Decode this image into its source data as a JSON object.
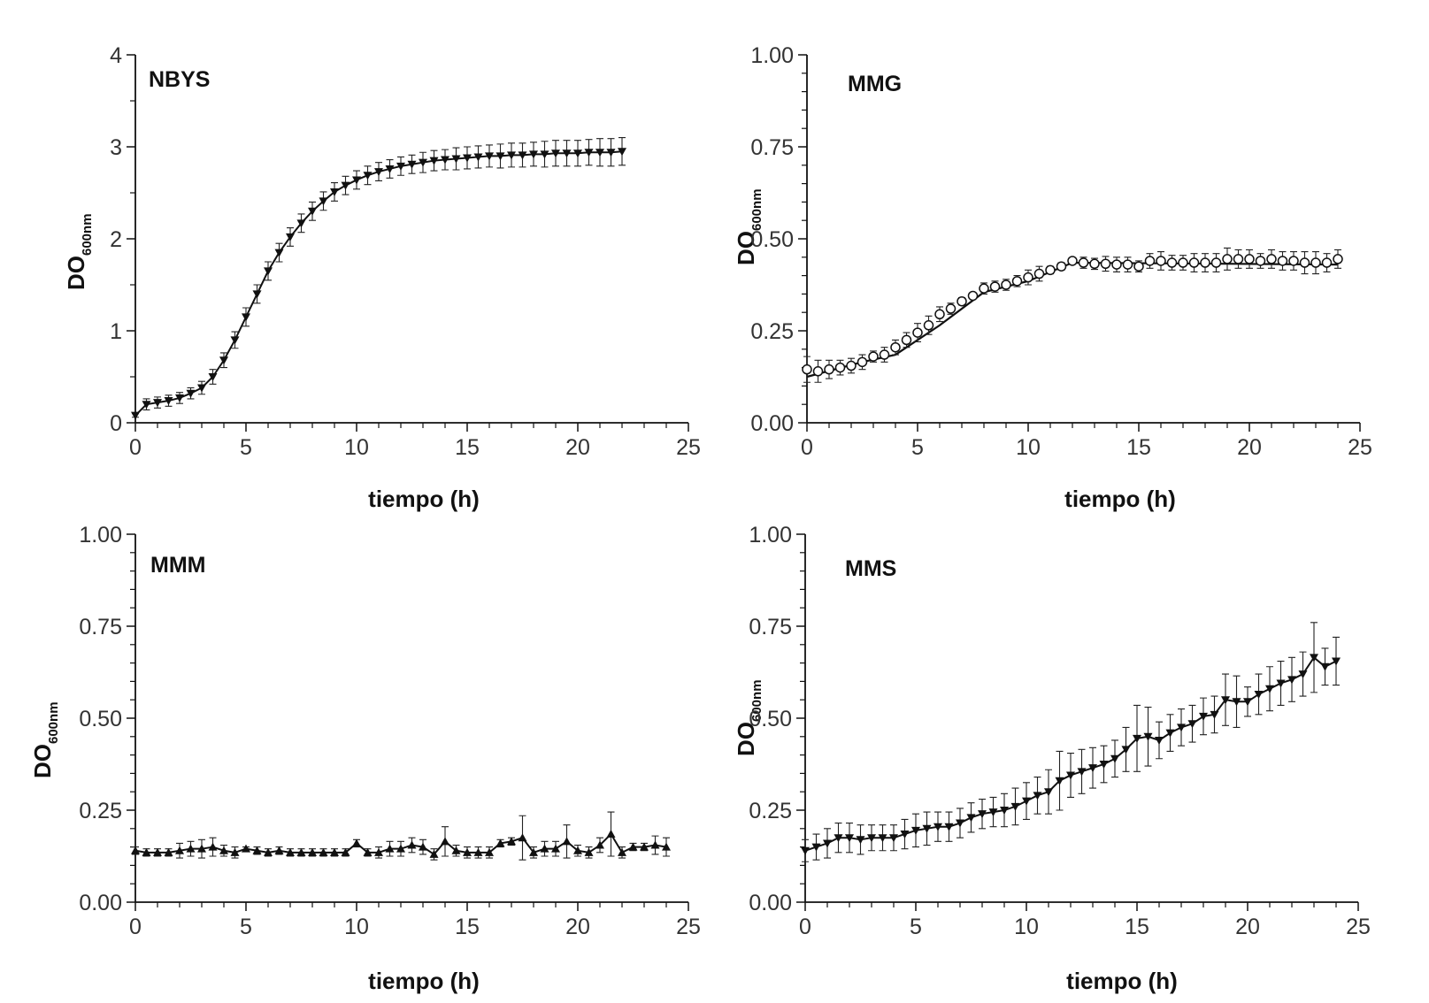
{
  "chart_data": [
    {
      "type": "line",
      "title": "NBYS",
      "xlabel": "tiempo (h)",
      "ylabel_main": "DO",
      "ylabel_sub": "600nm",
      "xlim": [
        0,
        25
      ],
      "ylim": [
        0,
        4
      ],
      "xticks": [
        "0",
        "5",
        "10",
        "15",
        "20",
        "25"
      ],
      "yticks": [
        "0",
        "1",
        "2",
        "3",
        "4"
      ],
      "marker": "triangle-down",
      "series": [
        {
          "name": "NBYS",
          "x": [
            0,
            0.5,
            1,
            1.5,
            2,
            2.5,
            3,
            3.5,
            4,
            4.5,
            5,
            5.5,
            6,
            6.5,
            7,
            7.5,
            8,
            8.5,
            9,
            9.5,
            10,
            10.5,
            11,
            11.5,
            12,
            12.5,
            13,
            13.5,
            14,
            14.5,
            15,
            15.5,
            16,
            16.5,
            17,
            17.5,
            18,
            18.5,
            19,
            19.5,
            20,
            20.5,
            21,
            21.5,
            22
          ],
          "y": [
            0.08,
            0.2,
            0.22,
            0.24,
            0.27,
            0.32,
            0.38,
            0.5,
            0.68,
            0.9,
            1.15,
            1.4,
            1.65,
            1.85,
            2.02,
            2.17,
            2.3,
            2.41,
            2.51,
            2.58,
            2.64,
            2.69,
            2.73,
            2.76,
            2.79,
            2.81,
            2.83,
            2.85,
            2.86,
            2.87,
            2.88,
            2.89,
            2.9,
            2.9,
            2.91,
            2.91,
            2.92,
            2.92,
            2.93,
            2.93,
            2.93,
            2.94,
            2.94,
            2.94,
            2.95
          ],
          "err": [
            0.02,
            0.06,
            0.06,
            0.06,
            0.06,
            0.06,
            0.07,
            0.08,
            0.08,
            0.09,
            0.1,
            0.1,
            0.1,
            0.1,
            0.1,
            0.1,
            0.1,
            0.1,
            0.1,
            0.1,
            0.1,
            0.1,
            0.1,
            0.1,
            0.1,
            0.1,
            0.11,
            0.11,
            0.11,
            0.12,
            0.12,
            0.12,
            0.12,
            0.13,
            0.13,
            0.13,
            0.13,
            0.14,
            0.14,
            0.14,
            0.14,
            0.14,
            0.15,
            0.15,
            0.15
          ]
        }
      ]
    },
    {
      "type": "line",
      "title": "MMG",
      "xlabel": "tiempo (h)",
      "ylabel_main": "DO",
      "ylabel_sub": "600nm",
      "xlim": [
        0,
        25
      ],
      "ylim": [
        0,
        1
      ],
      "xticks": [
        "0",
        "5",
        "10",
        "15",
        "20",
        "25"
      ],
      "yticks": [
        "0.00",
        "0.25",
        "0.50",
        "0.75",
        "1.00"
      ],
      "marker": "circle-open",
      "series": [
        {
          "name": "MMG",
          "x": [
            0,
            0.5,
            1,
            1.5,
            2,
            2.5,
            3,
            3.5,
            4,
            4.5,
            5,
            5.5,
            6,
            6.5,
            7,
            7.5,
            8,
            8.5,
            9,
            9.5,
            10,
            10.5,
            11,
            11.5,
            12,
            12.5,
            13,
            13.5,
            14,
            14.5,
            15,
            15.5,
            16,
            16.5,
            17,
            17.5,
            18,
            18.5,
            19,
            19.5,
            20,
            20.5,
            21,
            21.5,
            22,
            22.5,
            23,
            23.5,
            24
          ],
          "y": [
            0.145,
            0.14,
            0.145,
            0.15,
            0.155,
            0.165,
            0.18,
            0.185,
            0.205,
            0.225,
            0.245,
            0.265,
            0.295,
            0.31,
            0.33,
            0.345,
            0.365,
            0.37,
            0.375,
            0.385,
            0.395,
            0.405,
            0.415,
            0.425,
            0.44,
            0.435,
            0.432,
            0.432,
            0.43,
            0.43,
            0.425,
            0.44,
            0.44,
            0.435,
            0.435,
            0.435,
            0.435,
            0.435,
            0.445,
            0.445,
            0.445,
            0.44,
            0.445,
            0.44,
            0.44,
            0.435,
            0.435,
            0.435,
            0.445
          ],
          "err": [
            0.035,
            0.03,
            0.025,
            0.02,
            0.02,
            0.02,
            0.015,
            0.02,
            0.02,
            0.02,
            0.025,
            0.025,
            0.02,
            0.015,
            0.01,
            0.008,
            0.015,
            0.015,
            0.015,
            0.015,
            0.02,
            0.02,
            0.01,
            0.01,
            0.005,
            0.015,
            0.015,
            0.02,
            0.02,
            0.02,
            0.015,
            0.02,
            0.025,
            0.02,
            0.02,
            0.025,
            0.025,
            0.025,
            0.03,
            0.025,
            0.025,
            0.02,
            0.025,
            0.025,
            0.025,
            0.03,
            0.03,
            0.025,
            0.025
          ]
        }
      ],
      "fit_line": {
        "x": [
          0,
          2.5,
          4,
          6,
          8,
          10,
          12,
          24
        ],
        "y": [
          0.125,
          0.165,
          0.185,
          0.265,
          0.355,
          0.385,
          0.435,
          0.43
        ]
      }
    },
    {
      "type": "line",
      "title": "MMM",
      "xlabel": "tiempo (h)",
      "ylabel_main": "DO",
      "ylabel_sub": "600nm",
      "xlim": [
        0,
        25
      ],
      "ylim": [
        0,
        1
      ],
      "xticks": [
        "0",
        "5",
        "10",
        "15",
        "20",
        "25"
      ],
      "yticks": [
        "0.00",
        "0.25",
        "0.50",
        "0.75",
        "1.00"
      ],
      "marker": "triangle-up",
      "series": [
        {
          "name": "MMM",
          "x": [
            0,
            0.5,
            1,
            1.5,
            2,
            2.5,
            3,
            3.5,
            4,
            4.5,
            5,
            5.5,
            6,
            6.5,
            7,
            7.5,
            8,
            8.5,
            9,
            9.5,
            10,
            10.5,
            11,
            11.5,
            12,
            12.5,
            13,
            13.5,
            14,
            14.5,
            15,
            15.5,
            16,
            16.5,
            17,
            17.5,
            18,
            18.5,
            19,
            19.5,
            20,
            20.5,
            21,
            21.5,
            22,
            22.5,
            23,
            23.5,
            24
          ],
          "y": [
            0.14,
            0.135,
            0.135,
            0.135,
            0.14,
            0.145,
            0.145,
            0.15,
            0.14,
            0.135,
            0.145,
            0.14,
            0.135,
            0.14,
            0.135,
            0.135,
            0.135,
            0.135,
            0.135,
            0.135,
            0.16,
            0.135,
            0.135,
            0.145,
            0.145,
            0.155,
            0.15,
            0.13,
            0.165,
            0.14,
            0.135,
            0.135,
            0.135,
            0.16,
            0.165,
            0.175,
            0.135,
            0.145,
            0.145,
            0.165,
            0.14,
            0.135,
            0.155,
            0.185,
            0.135,
            0.15,
            0.15,
            0.155,
            0.15
          ],
          "err": [
            0.01,
            0.01,
            0.01,
            0.01,
            0.02,
            0.02,
            0.025,
            0.025,
            0.015,
            0.015,
            0.005,
            0.01,
            0.01,
            0.01,
            0.01,
            0.01,
            0.01,
            0.01,
            0.01,
            0.01,
            0.01,
            0.01,
            0.015,
            0.02,
            0.02,
            0.02,
            0.02,
            0.015,
            0.04,
            0.015,
            0.015,
            0.015,
            0.015,
            0.01,
            0.01,
            0.06,
            0.015,
            0.02,
            0.02,
            0.045,
            0.015,
            0.015,
            0.02,
            0.06,
            0.015,
            0.01,
            0.01,
            0.025,
            0.025
          ]
        }
      ]
    },
    {
      "type": "line",
      "title": "MMS",
      "xlabel": "tiempo (h)",
      "ylabel_main": "DO",
      "ylabel_sub": "600nm",
      "xlim": [
        0,
        25
      ],
      "ylim": [
        0,
        1
      ],
      "xticks": [
        "0",
        "5",
        "10",
        "15",
        "20",
        "25"
      ],
      "yticks": [
        "0.00",
        "0.25",
        "0.50",
        "0.75",
        "1.00"
      ],
      "marker": "triangle-down",
      "series": [
        {
          "name": "MMS",
          "x": [
            0,
            0.5,
            1,
            1.5,
            2,
            2.5,
            3,
            3.5,
            4,
            4.5,
            5,
            5.5,
            6,
            6.5,
            7,
            7.5,
            8,
            8.5,
            9,
            9.5,
            10,
            10.5,
            11,
            11.5,
            12,
            12.5,
            13,
            13.5,
            14,
            14.5,
            15,
            15.5,
            16,
            16.5,
            17,
            17.5,
            18,
            18.5,
            19,
            19.5,
            20,
            20.5,
            21,
            21.5,
            22,
            22.5,
            23,
            23.5,
            24
          ],
          "y": [
            0.14,
            0.15,
            0.16,
            0.175,
            0.175,
            0.17,
            0.175,
            0.175,
            0.175,
            0.185,
            0.195,
            0.2,
            0.205,
            0.205,
            0.215,
            0.23,
            0.24,
            0.245,
            0.25,
            0.26,
            0.275,
            0.29,
            0.3,
            0.33,
            0.345,
            0.355,
            0.365,
            0.375,
            0.39,
            0.415,
            0.445,
            0.45,
            0.44,
            0.46,
            0.475,
            0.485,
            0.505,
            0.51,
            0.55,
            0.545,
            0.545,
            0.565,
            0.58,
            0.595,
            0.605,
            0.62,
            0.665,
            0.64,
            0.655
          ],
          "err": [
            0.03,
            0.035,
            0.04,
            0.04,
            0.04,
            0.04,
            0.035,
            0.035,
            0.035,
            0.04,
            0.045,
            0.045,
            0.04,
            0.04,
            0.04,
            0.04,
            0.04,
            0.04,
            0.045,
            0.05,
            0.05,
            0.05,
            0.06,
            0.08,
            0.06,
            0.06,
            0.055,
            0.05,
            0.05,
            0.06,
            0.09,
            0.08,
            0.05,
            0.05,
            0.05,
            0.05,
            0.05,
            0.05,
            0.07,
            0.07,
            0.04,
            0.055,
            0.06,
            0.06,
            0.06,
            0.06,
            0.095,
            0.05,
            0.065
          ]
        }
      ]
    }
  ]
}
